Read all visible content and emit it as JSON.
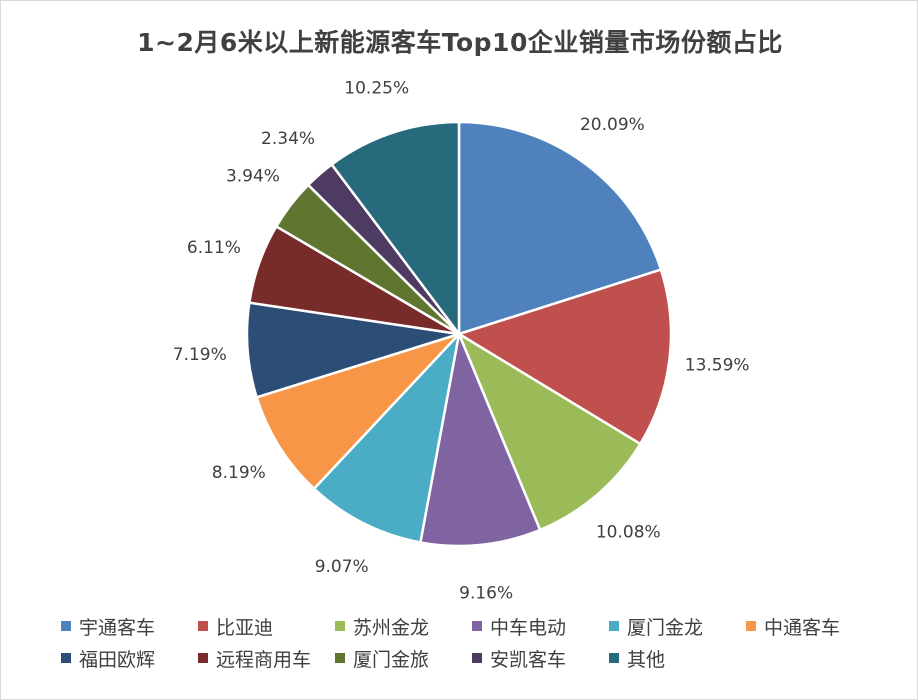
{
  "chart_data": {
    "type": "pie",
    "title": "1~2月6米以上新能源客车Top10企业销量市场份额占比",
    "slices": [
      {
        "name": "宇通客车",
        "value": 20.09,
        "label": "20.09%",
        "color": "#4F81BD"
      },
      {
        "name": "比亚迪",
        "value": 13.59,
        "label": "13.59%",
        "color": "#C0504D"
      },
      {
        "name": "苏州金龙",
        "value": 10.08,
        "label": "10.08%",
        "color": "#9BBB59"
      },
      {
        "name": "中车电动",
        "value": 9.16,
        "label": "9.16%",
        "color": "#8064A2"
      },
      {
        "name": "厦门金龙",
        "value": 9.07,
        "label": "9.07%",
        "color": "#4BACC6"
      },
      {
        "name": "中通客车",
        "value": 8.19,
        "label": "8.19%",
        "color": "#F79646"
      },
      {
        "name": "福田欧辉",
        "value": 7.19,
        "label": "7.19%",
        "color": "#2C4D75"
      },
      {
        "name": "远程商用车",
        "value": 6.11,
        "label": "6.11%",
        "color": "#772C2A"
      },
      {
        "name": "厦门金旅",
        "value": 3.94,
        "label": "3.94%",
        "color": "#5F7530"
      },
      {
        "name": "安凯客车",
        "value": 2.34,
        "label": "2.34%",
        "color": "#4D3B62"
      },
      {
        "name": "其他",
        "value": 10.25,
        "label": "10.25%",
        "color": "#276A7C"
      }
    ],
    "legend_position": "bottom"
  }
}
